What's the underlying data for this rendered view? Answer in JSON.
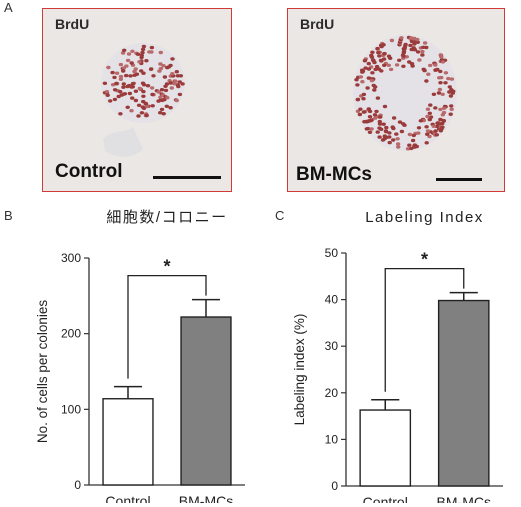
{
  "panel_labels": {
    "a": "A",
    "b": "B",
    "c": "C"
  },
  "photos": [
    {
      "stain": "BrdU",
      "condition": "Control"
    },
    {
      "stain": "BrdU",
      "condition": "BM-MCs"
    }
  ],
  "chart_data": [
    {
      "type": "bar",
      "title": "細胞数/コロニー",
      "ylabel": "No. of cells per colonies",
      "xlabel": "",
      "categories": [
        "Control",
        "BM-MCs"
      ],
      "values": [
        114,
        222
      ],
      "errors": [
        16,
        23
      ],
      "ylim": [
        0,
        300
      ],
      "yticks": [
        0,
        100,
        200,
        300
      ],
      "significance": "*",
      "bar_colors": [
        "#ffffff",
        "#808080"
      ]
    },
    {
      "type": "bar",
      "title": "Labeling Index",
      "ylabel": "Labeling index (%)",
      "xlabel": "",
      "categories": [
        "Control",
        "BM-MCs"
      ],
      "values": [
        16.3,
        39.8
      ],
      "errors": [
        2.2,
        1.7
      ],
      "ylim": [
        0,
        50
      ],
      "yticks": [
        0,
        10,
        20,
        30,
        40,
        50
      ],
      "significance": "*",
      "bar_colors": [
        "#ffffff",
        "#808080"
      ]
    }
  ]
}
